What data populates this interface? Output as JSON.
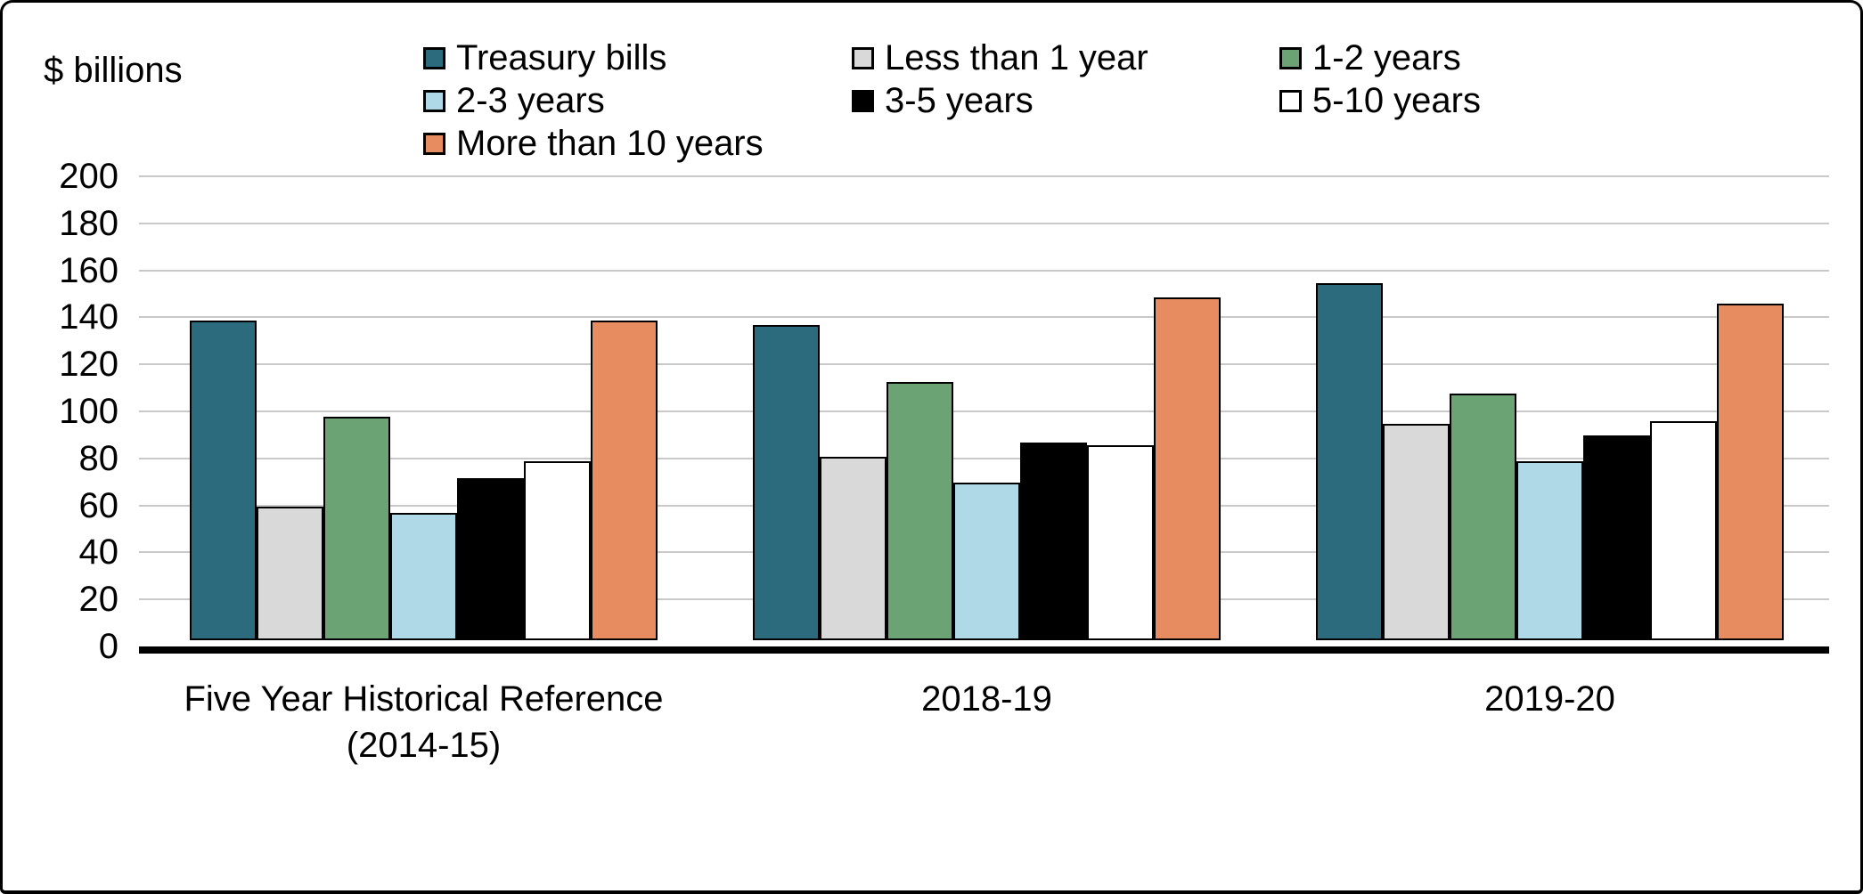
{
  "chart_data": {
    "type": "bar",
    "title": "",
    "ylabel": "$ billions",
    "xlabel": "",
    "ylim": [
      0,
      200
    ],
    "ytick_interval": 20,
    "grid": "horizontal",
    "legend_position": "top",
    "categories": [
      "Five Year Historical Reference\n(2014-15)",
      "2018-19",
      "2019-20"
    ],
    "series": [
      {
        "name": "Treasury bills",
        "color": "#2C6B7D",
        "values": [
          136,
          134,
          152
        ]
      },
      {
        "name": "Less than 1 year",
        "color": "#D9D9D9",
        "values": [
          57,
          78,
          92
        ]
      },
      {
        "name": "1-2 years",
        "color": "#6CA374",
        "values": [
          95,
          110,
          105
        ]
      },
      {
        "name": "2-3 years",
        "color": "#AFD9E7",
        "values": [
          54,
          67,
          76
        ]
      },
      {
        "name": "3-5 years",
        "color": "#000000",
        "values": [
          69,
          84,
          87
        ]
      },
      {
        "name": "5-10 years",
        "color": "#FFFFFF",
        "values": [
          76,
          83,
          93
        ]
      },
      {
        "name": "More than 10 years",
        "color": "#E78B61",
        "values": [
          136,
          146,
          143
        ]
      }
    ],
    "styles": {
      "bar_border_color": "#000000",
      "gridline_color": "#C9C9C9",
      "axis_color": "#000000",
      "background": "#FFFFFF",
      "frame_border_color": "#000000",
      "text_color": "#000000"
    }
  }
}
